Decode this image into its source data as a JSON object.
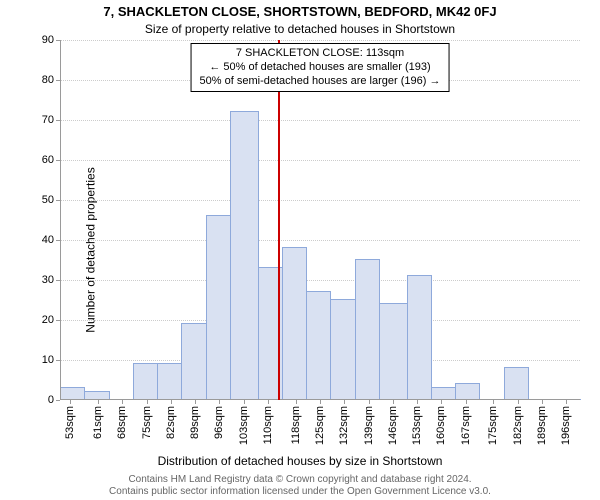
{
  "title": "7, SHACKLETON CLOSE, SHORTSTOWN, BEDFORD, MK42 0FJ",
  "subtitle": "Size of property relative to detached houses in Shortstown",
  "y_axis_label": "Number of detached properties",
  "x_axis_label": "Distribution of detached houses by size in Shortstown",
  "footer_line1": "Contains HM Land Registry data © Crown copyright and database right 2024.",
  "footer_line2": "Contains public sector information licensed under the Open Government Licence v3.0.",
  "chart": {
    "type": "histogram",
    "ylim": [
      0,
      90
    ],
    "ytick_step": 10,
    "xticks": [
      53,
      61,
      68,
      75,
      82,
      89,
      96,
      103,
      110,
      118,
      125,
      132,
      139,
      146,
      153,
      160,
      167,
      175,
      182,
      189,
      196
    ],
    "xtick_unit": "sqm",
    "bar_fill": "#d9e1f2",
    "bar_stroke": "#8ea9db",
    "grid_color": "#cccccc",
    "background_color": "#ffffff",
    "bars": [
      {
        "x0": 50,
        "x1": 57,
        "y": 3
      },
      {
        "x0": 57,
        "x1": 64,
        "y": 2
      },
      {
        "x0": 64,
        "x1": 71,
        "y": 0
      },
      {
        "x0": 71,
        "x1": 78,
        "y": 9
      },
      {
        "x0": 78,
        "x1": 85,
        "y": 9
      },
      {
        "x0": 85,
        "x1": 92,
        "y": 19
      },
      {
        "x0": 92,
        "x1": 99,
        "y": 46
      },
      {
        "x0": 99,
        "x1": 107,
        "y": 72
      },
      {
        "x0": 107,
        "x1": 114,
        "y": 33
      },
      {
        "x0": 114,
        "x1": 121,
        "y": 38
      },
      {
        "x0": 121,
        "x1": 128,
        "y": 27
      },
      {
        "x0": 128,
        "x1": 135,
        "y": 25
      },
      {
        "x0": 135,
        "x1": 142,
        "y": 35
      },
      {
        "x0": 142,
        "x1": 150,
        "y": 24
      },
      {
        "x0": 150,
        "x1": 157,
        "y": 31
      },
      {
        "x0": 157,
        "x1": 164,
        "y": 3
      },
      {
        "x0": 164,
        "x1": 171,
        "y": 4
      },
      {
        "x0": 171,
        "x1": 178,
        "y": 0
      },
      {
        "x0": 178,
        "x1": 185,
        "y": 8
      },
      {
        "x0": 185,
        "x1": 192,
        "y": 0
      },
      {
        "x0": 192,
        "x1": 200,
        "y": 0
      }
    ],
    "x_domain": [
      50,
      200
    ],
    "reference_line_x": 113,
    "reference_color": "#cc0000"
  },
  "info_box": {
    "line1": "7 SHACKLETON CLOSE: 113sqm",
    "line2": "← 50% of detached houses are smaller (193)",
    "line3": "50% of semi-detached houses are larger (196) →"
  }
}
